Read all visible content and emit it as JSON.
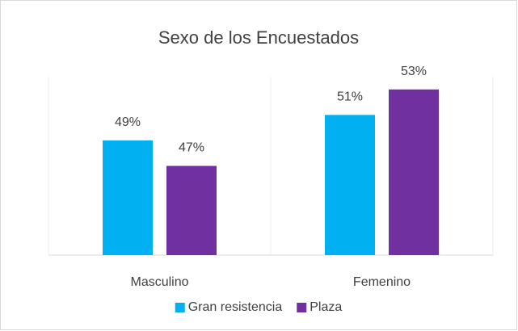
{
  "chart_data": {
    "type": "bar",
    "title": "Sexo de los Encuestados",
    "categories": [
      "Masculino",
      "Femenino"
    ],
    "series": [
      {
        "name": "Gran resistencia",
        "color": "#00b0f0",
        "values": [
          49,
          51
        ],
        "value_labels": [
          "49%",
          "51%"
        ]
      },
      {
        "name": "Plaza",
        "color": "#7030a0",
        "values": [
          47,
          53
        ],
        "value_labels": [
          "47%",
          "53%"
        ]
      }
    ],
    "ylim": [
      40,
      54
    ],
    "legend": "bottom"
  }
}
